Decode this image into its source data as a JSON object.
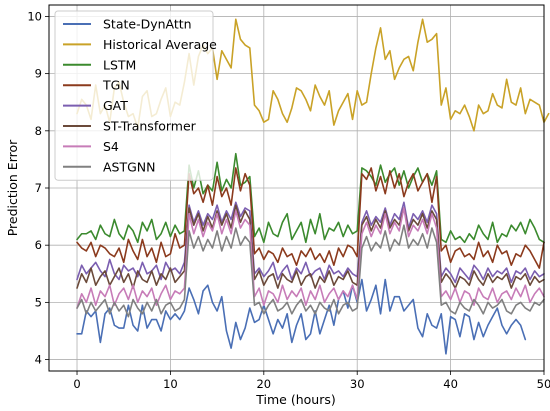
{
  "chart_data": {
    "type": "line",
    "xlabel": "Time (hours)",
    "ylabel": "Prediction Error",
    "xlim": [
      -3,
      50
    ],
    "ylim": [
      3.8,
      10.2
    ],
    "xticks": [
      0,
      10,
      20,
      30,
      40,
      50
    ],
    "yticks": [
      4,
      5,
      6,
      7,
      8,
      9,
      10
    ],
    "grid": true,
    "legend_position": "upper-left",
    "x_step": 0.5,
    "series": [
      {
        "name": "State-DynAttn",
        "color": "#4a6fb5",
        "values": [
          4.45,
          4.45,
          4.85,
          4.75,
          4.85,
          4.3,
          4.8,
          4.9,
          4.6,
          4.55,
          4.55,
          4.95,
          4.6,
          4.5,
          4.95,
          4.55,
          4.7,
          4.7,
          4.5,
          4.85,
          4.7,
          4.8,
          4.7,
          4.85,
          5.25,
          5.05,
          4.8,
          5.2,
          5.3,
          5.0,
          4.85,
          5.1,
          4.5,
          4.2,
          4.65,
          4.35,
          4.55,
          4.9,
          4.65,
          4.7,
          4.95,
          4.7,
          4.45,
          4.7,
          4.55,
          4.8,
          4.3,
          4.6,
          4.8,
          4.35,
          4.45,
          4.85,
          4.45,
          4.7,
          4.95,
          4.6,
          5.05,
          5.2,
          4.9,
          5.3,
          5.0,
          5.4,
          4.85,
          5.05,
          5.3,
          4.8,
          5.4,
          4.85,
          5.1,
          5.1,
          4.85,
          4.95,
          5.05,
          4.55,
          4.4,
          4.8,
          4.6,
          4.55,
          4.8,
          4.1,
          4.75,
          4.7,
          4.4,
          4.8,
          4.75,
          4.35,
          4.65,
          4.4,
          4.6,
          4.75,
          4.9,
          4.6,
          4.45,
          4.6,
          4.7,
          4.6,
          4.35
        ]
      },
      {
        "name": "Historical Average",
        "color": "#c9a227",
        "values": [
          8.3,
          8.55,
          8.45,
          8.2,
          8.8,
          8.3,
          8.45,
          8.15,
          8.75,
          8.85,
          8.5,
          8.25,
          8.3,
          8.05,
          8.6,
          8.7,
          8.25,
          8.3,
          8.55,
          8.75,
          8.25,
          8.5,
          8.45,
          8.85,
          9.35,
          8.8,
          9.3,
          9.5,
          9.35,
          9.45,
          8.9,
          9.4,
          9.25,
          9.1,
          9.95,
          9.6,
          9.5,
          9.45,
          8.45,
          8.35,
          8.15,
          8.2,
          8.7,
          8.55,
          8.3,
          8.15,
          8.4,
          8.75,
          8.7,
          8.55,
          8.35,
          8.8,
          8.6,
          8.45,
          8.7,
          8.1,
          8.35,
          8.5,
          8.65,
          8.2,
          8.7,
          8.45,
          8.5,
          9.0,
          9.45,
          9.8,
          9.25,
          9.4,
          8.9,
          9.1,
          9.25,
          9.3,
          9.05,
          9.55,
          9.95,
          9.55,
          9.6,
          9.7,
          8.45,
          8.75,
          8.2,
          8.35,
          8.3,
          8.45,
          8.25,
          8.0,
          8.45,
          8.3,
          8.35,
          8.65,
          8.45,
          8.4,
          8.9,
          8.5,
          8.45,
          8.75,
          8.3,
          8.55,
          8.5,
          8.45,
          8.15,
          8.3
        ]
      },
      {
        "name": "LSTM",
        "color": "#3b8a2e",
        "values": [
          6.1,
          6.2,
          6.2,
          6.25,
          6.1,
          6.35,
          6.2,
          6.15,
          6.45,
          6.2,
          6.1,
          6.35,
          6.25,
          6.05,
          6.4,
          6.25,
          6.45,
          6.1,
          6.2,
          6.4,
          6.15,
          6.35,
          6.2,
          6.25,
          7.4,
          7.0,
          7.3,
          6.9,
          7.05,
          6.95,
          7.45,
          6.95,
          7.15,
          7.0,
          7.6,
          7.05,
          7.1,
          7.2,
          6.15,
          6.3,
          6.05,
          6.4,
          6.2,
          6.15,
          6.4,
          6.55,
          6.1,
          6.25,
          6.4,
          6.05,
          6.45,
          6.2,
          6.55,
          6.1,
          6.3,
          6.25,
          6.4,
          6.15,
          6.35,
          6.2,
          6.25,
          7.35,
          7.3,
          7.2,
          7.05,
          7.4,
          7.1,
          7.25,
          7.35,
          7.05,
          7.3,
          7.0,
          7.2,
          7.35,
          7.1,
          7.25,
          7.05,
          7.3,
          6.1,
          6.05,
          6.25,
          6.1,
          6.15,
          6.05,
          6.2,
          6.1,
          6.35,
          6.2,
          6.1,
          6.4,
          6.05,
          6.2,
          6.15,
          6.35,
          6.25,
          6.4,
          6.2,
          6.45,
          6.3,
          6.1,
          6.05
        ]
      },
      {
        "name": "TGN",
        "color": "#8b3a1d",
        "values": [
          6.05,
          5.95,
          5.9,
          6.05,
          5.8,
          6.0,
          5.95,
          5.85,
          5.8,
          5.95,
          5.7,
          6.1,
          5.9,
          5.75,
          6.1,
          5.8,
          5.95,
          5.7,
          6.05,
          5.8,
          5.85,
          6.2,
          5.95,
          6.0,
          7.25,
          6.9,
          7.0,
          6.75,
          7.05,
          6.7,
          7.2,
          6.85,
          7.0,
          6.7,
          7.35,
          6.95,
          7.25,
          7.05,
          5.85,
          5.95,
          5.75,
          5.9,
          5.85,
          5.7,
          5.95,
          5.8,
          5.85,
          5.65,
          5.9,
          5.8,
          5.95,
          5.75,
          5.85,
          5.7,
          5.9,
          5.65,
          5.95,
          5.8,
          6.0,
          5.95,
          5.8,
          7.25,
          7.15,
          7.35,
          6.95,
          7.2,
          6.9,
          7.3,
          7.0,
          7.25,
          6.85,
          7.1,
          7.25,
          6.95,
          7.1,
          7.25,
          6.75,
          7.2,
          5.9,
          6.0,
          5.7,
          5.9,
          5.95,
          5.8,
          5.85,
          5.75,
          6.05,
          5.8,
          5.9,
          5.7,
          6.0,
          5.85,
          5.9,
          5.65,
          5.85,
          5.8,
          6.0,
          5.9,
          5.75,
          5.6,
          6.05
        ]
      },
      {
        "name": "GAT",
        "color": "#7b5eb0",
        "values": [
          5.4,
          5.65,
          5.5,
          5.6,
          5.7,
          5.55,
          5.45,
          5.75,
          5.5,
          5.4,
          5.65,
          5.55,
          5.6,
          5.45,
          5.7,
          5.5,
          5.55,
          5.65,
          5.4,
          5.7,
          5.55,
          5.6,
          5.5,
          5.7,
          6.7,
          6.4,
          6.6,
          6.35,
          6.55,
          6.45,
          6.7,
          6.4,
          6.6,
          6.45,
          6.75,
          6.5,
          6.65,
          6.6,
          5.5,
          5.6,
          5.45,
          5.55,
          5.7,
          5.4,
          5.55,
          5.65,
          5.4,
          5.6,
          5.5,
          5.7,
          5.45,
          5.55,
          5.6,
          5.4,
          5.65,
          5.5,
          5.55,
          5.45,
          5.6,
          5.5,
          5.45,
          6.4,
          6.6,
          6.35,
          6.5,
          6.4,
          6.65,
          6.35,
          6.55,
          6.45,
          6.75,
          6.3,
          6.55,
          6.45,
          6.6,
          6.4,
          6.7,
          6.55,
          5.45,
          5.6,
          5.5,
          5.35,
          5.6,
          5.5,
          5.4,
          5.65,
          5.55,
          5.4,
          5.6,
          5.45,
          5.55,
          5.5,
          5.6,
          5.35,
          5.55,
          5.5,
          5.6,
          5.4,
          5.55,
          5.45,
          5.5
        ]
      },
      {
        "name": "ST-Transformer",
        "color": "#6b4a3a",
        "values": [
          5.25,
          5.5,
          5.35,
          5.6,
          5.3,
          5.45,
          5.55,
          5.3,
          5.45,
          5.6,
          5.35,
          5.5,
          5.25,
          5.55,
          5.4,
          5.35,
          5.55,
          5.3,
          5.5,
          5.4,
          5.6,
          5.35,
          5.45,
          5.55,
          6.65,
          6.35,
          6.55,
          6.25,
          6.5,
          6.3,
          6.6,
          6.35,
          6.55,
          6.3,
          6.7,
          6.4,
          6.6,
          6.45,
          5.4,
          5.55,
          5.3,
          5.45,
          5.5,
          5.25,
          5.5,
          5.4,
          5.35,
          5.55,
          5.3,
          5.45,
          5.5,
          5.25,
          5.45,
          5.35,
          5.55,
          5.3,
          5.45,
          5.4,
          5.55,
          5.35,
          5.3,
          6.35,
          6.5,
          6.25,
          6.45,
          6.3,
          6.6,
          6.3,
          6.45,
          6.35,
          6.65,
          6.25,
          6.45,
          6.35,
          6.55,
          6.3,
          6.6,
          6.45,
          5.35,
          5.5,
          5.4,
          5.25,
          5.45,
          5.4,
          5.3,
          5.55,
          5.4,
          5.3,
          5.5,
          5.35,
          5.45,
          5.4,
          5.5,
          5.25,
          5.45,
          5.4,
          5.5,
          5.3,
          5.45,
          5.35,
          5.4
        ]
      },
      {
        "name": "S4",
        "color": "#c77cb8",
        "values": [
          4.9,
          5.15,
          5.0,
          5.25,
          4.95,
          5.2,
          5.1,
          5.3,
          4.95,
          5.15,
          5.25,
          5.05,
          5.3,
          5.0,
          5.2,
          5.1,
          5.25,
          4.95,
          5.15,
          5.3,
          5.05,
          5.2,
          5.15,
          5.25,
          6.55,
          6.2,
          6.45,
          6.15,
          6.4,
          6.25,
          6.55,
          6.2,
          6.45,
          6.2,
          6.6,
          6.3,
          6.45,
          6.35,
          5.1,
          5.25,
          4.95,
          5.2,
          5.15,
          5.0,
          5.3,
          5.05,
          5.2,
          5.1,
          5.25,
          4.95,
          5.2,
          5.05,
          5.3,
          5.0,
          5.15,
          5.25,
          5.05,
          5.2,
          5.1,
          5.3,
          5.05,
          6.2,
          6.4,
          6.15,
          6.35,
          6.2,
          6.55,
          6.2,
          6.4,
          6.25,
          6.65,
          6.15,
          6.35,
          6.25,
          6.45,
          6.2,
          6.55,
          6.3,
          5.1,
          5.2,
          5.05,
          5.25,
          5.0,
          5.2,
          5.15,
          4.95,
          5.25,
          5.1,
          5.05,
          5.25,
          5.0,
          5.15,
          5.2,
          5.05,
          5.25,
          5.1,
          5.3,
          5.0,
          5.15,
          5.25,
          5.1
        ]
      },
      {
        "name": "ASTGNN",
        "color": "#808080",
        "values": [
          4.9,
          5.05,
          4.8,
          5.0,
          4.85,
          4.95,
          5.05,
          4.8,
          5.0,
          4.85,
          4.95,
          4.75,
          5.05,
          4.9,
          4.8,
          5.0,
          4.85,
          5.05,
          4.8,
          4.95,
          5.0,
          4.85,
          4.9,
          5.05,
          6.25,
          5.95,
          6.15,
          5.9,
          6.1,
          5.95,
          6.25,
          5.9,
          6.15,
          5.95,
          6.3,
          6.0,
          6.15,
          6.05,
          4.95,
          5.0,
          4.8,
          4.95,
          5.05,
          4.85,
          4.9,
          5.0,
          4.8,
          4.95,
          5.05,
          4.85,
          4.95,
          4.8,
          5.0,
          4.9,
          4.85,
          5.05,
          4.8,
          4.95,
          5.0,
          4.85,
          4.9,
          5.95,
          6.15,
          5.9,
          6.05,
          5.95,
          6.25,
          5.9,
          6.1,
          6.0,
          6.35,
          5.95,
          6.1,
          6.0,
          6.2,
          5.95,
          6.3,
          6.05,
          4.95,
          5.0,
          4.85,
          4.8,
          5.0,
          4.9,
          4.85,
          5.05,
          4.95,
          4.8,
          5.0,
          4.9,
          4.95,
          5.05,
          4.85,
          4.8,
          4.95,
          5.0,
          4.9,
          4.85,
          5.0,
          4.95,
          5.05
        ]
      }
    ]
  }
}
